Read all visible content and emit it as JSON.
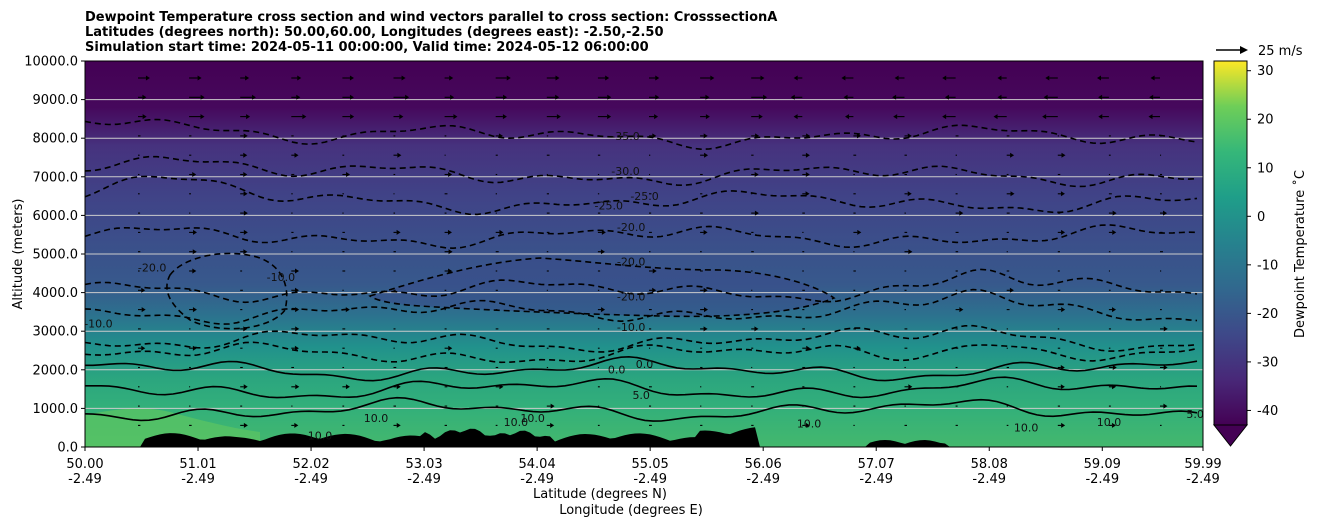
{
  "chart_data": {
    "type": "contour",
    "title_lines": [
      "Dewpoint Temperature cross section and wind vectors parallel to cross section: CrosssectionA",
      "Latitudes (degrees north): 50.00,60.00, Longitudes (degrees east): -2.50,-2.50",
      "Simulation start time: 2024-05-11 00:00:00, Valid time: 2024-05-12 06:00:00"
    ],
    "ylabel": "Altitude (meters)",
    "xlabel_lines": [
      "Latitude (degrees N)",
      "Longitude (degrees E)"
    ],
    "y_ticks": [
      "0.0",
      "1000.0",
      "2000.0",
      "3000.0",
      "4000.0",
      "5000.0",
      "6000.0",
      "7000.0",
      "8000.0",
      "9000.0",
      "10000.0"
    ],
    "y_tick_values": [
      0,
      1000,
      2000,
      3000,
      4000,
      5000,
      6000,
      7000,
      8000,
      9000,
      10000
    ],
    "ylim": [
      0,
      10000
    ],
    "x_ticks": [
      {
        "lat": "50.00",
        "lon": "-2.49"
      },
      {
        "lat": "51.01",
        "lon": "-2.49"
      },
      {
        "lat": "52.02",
        "lon": "-2.49"
      },
      {
        "lat": "53.03",
        "lon": "-2.49"
      },
      {
        "lat": "54.04",
        "lon": "-2.49"
      },
      {
        "lat": "55.05",
        "lon": "-2.49"
      },
      {
        "lat": "56.06",
        "lon": "-2.49"
      },
      {
        "lat": "57.07",
        "lon": "-2.49"
      },
      {
        "lat": "58.08",
        "lon": "-2.49"
      },
      {
        "lat": "59.09",
        "lon": "-2.49"
      },
      {
        "lat": "59.99",
        "lon": "-2.49"
      }
    ],
    "x_tick_values": [
      50.0,
      51.01,
      52.02,
      53.03,
      54.04,
      55.05,
      56.06,
      57.07,
      58.08,
      59.09,
      59.99
    ],
    "xlim": [
      50.0,
      59.99
    ],
    "grid": "horizontal",
    "colormap": "viridis",
    "colorbar": {
      "label": "Dewpoint Temperature ˚C",
      "ticks": [
        "-40",
        "-30",
        "-20",
        "-10",
        "0",
        "10",
        "20",
        "30"
      ],
      "tick_values": [
        -40,
        -30,
        -20,
        -10,
        0,
        10,
        20,
        30
      ],
      "range": [
        -43,
        32
      ],
      "extend": "min"
    },
    "quiver_key_label": "25 m/s",
    "contour_levels": [
      {
        "level": -35,
        "style": "dashed",
        "alt": 8050
      },
      {
        "level": -30,
        "style": "dashed",
        "alt": 7050
      },
      {
        "level": -25,
        "style": "dashed",
        "alt": 6350
      },
      {
        "level": -20,
        "style": "dashed",
        "alt": 5450
      },
      {
        "level": -20,
        "style": "dashed",
        "alt": 4050
      },
      {
        "level": -20,
        "style": "dashed",
        "alt": 3500
      },
      {
        "level": -10,
        "style": "dashed",
        "alt": 2750
      },
      {
        "level": -10,
        "style": "dashed",
        "alt": 2400
      },
      {
        "level": 0,
        "style": "solid",
        "alt": 2000
      },
      {
        "level": 5,
        "style": "solid",
        "alt": 1500
      },
      {
        "level": 10,
        "style": "solid",
        "alt": 950
      }
    ],
    "contour_labels": [
      {
        "text": "-35.0",
        "lat": 54.83,
        "alt": 7950
      },
      {
        "text": "-30.0",
        "lat": 54.83,
        "alt": 7050
      },
      {
        "text": "-25.0",
        "lat": 55.0,
        "alt": 6400
      },
      {
        "text": "-25.0",
        "lat": 54.68,
        "alt": 6150
      },
      {
        "text": "-20.0",
        "lat": 54.88,
        "alt": 5600
      },
      {
        "text": "-20.0",
        "lat": 54.88,
        "alt": 4700
      },
      {
        "text": "-20.0",
        "lat": 54.88,
        "alt": 3800
      },
      {
        "text": "-20.0",
        "lat": 50.6,
        "alt": 4550
      },
      {
        "text": "-10.0",
        "lat": 51.75,
        "alt": 4300
      },
      {
        "text": "-10.0",
        "lat": 54.88,
        "alt": 3000
      },
      {
        "text": "-10.0",
        "lat": 50.12,
        "alt": 3100
      },
      {
        "text": "0.0",
        "lat": 54.75,
        "alt": 1900
      },
      {
        "text": "0.0",
        "lat": 55.0,
        "alt": 2050
      },
      {
        "text": "5.0",
        "lat": 54.97,
        "alt": 1250
      },
      {
        "text": "10.0",
        "lat": 56.47,
        "alt": 500
      },
      {
        "text": "10.0",
        "lat": 54.0,
        "alt": 650
      },
      {
        "text": "10.0",
        "lat": 52.6,
        "alt": 650
      },
      {
        "text": "10.0",
        "lat": 52.1,
        "alt": 200
      },
      {
        "text": "10.0",
        "lat": 53.85,
        "alt": 550
      },
      {
        "text": "10.0",
        "lat": 58.41,
        "alt": 400
      },
      {
        "text": "10.0",
        "lat": 59.15,
        "alt": 550
      },
      {
        "text": "5.0",
        "lat": 59.92,
        "alt": 750
      }
    ],
    "colors": {
      "high": "#fde725",
      "low": "#440154",
      "terrain": "#000000",
      "grid": "#cccccc"
    }
  }
}
